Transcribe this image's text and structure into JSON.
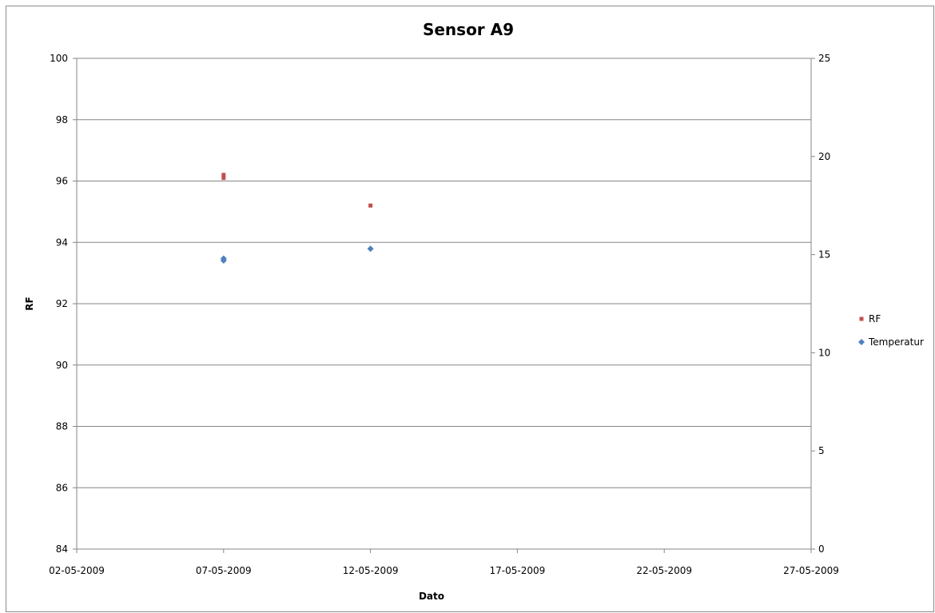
{
  "chart_data": {
    "type": "scatter",
    "title": "Sensor A9",
    "xlabel": "Dato",
    "ylabel": "RF",
    "y2label": "",
    "x_ticks": [
      "02-05-2009",
      "07-05-2009",
      "12-05-2009",
      "17-05-2009",
      "22-05-2009",
      "27-05-2009"
    ],
    "xlim": [
      "2009-05-02",
      "2009-05-27"
    ],
    "ylim": [
      84,
      100
    ],
    "y_ticks": [
      84,
      86,
      88,
      90,
      92,
      94,
      96,
      98,
      100
    ],
    "y2lim": [
      0,
      25
    ],
    "y2_ticks": [
      0,
      5,
      10,
      15,
      20,
      25
    ],
    "grid": true,
    "legend_position": "right",
    "series": [
      {
        "name": "RF",
        "axis": "left",
        "color": "#c0504d",
        "marker": "square",
        "points": [
          {
            "x": "2009-05-07",
            "y": 96.2
          },
          {
            "x": "2009-05-07",
            "y": 96.1
          },
          {
            "x": "2009-05-12",
            "y": 95.2
          }
        ]
      },
      {
        "name": "Temperatur",
        "axis": "right",
        "color": "#4f81bd",
        "marker": "diamond",
        "points": [
          {
            "x": "2009-05-07",
            "y": 14.8
          },
          {
            "x": "2009-05-07",
            "y": 14.7
          },
          {
            "x": "2009-05-12",
            "y": 15.3
          }
        ]
      }
    ]
  }
}
